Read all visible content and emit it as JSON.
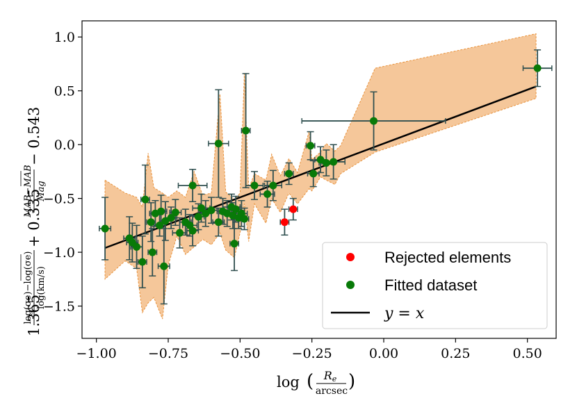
{
  "chart_data": {
    "type": "scatter",
    "xlabel": "log (Re / arcsec)",
    "xlabel_main": "log",
    "xlabel_num": "R",
    "xlabel_num_sub": "e",
    "xlabel_den": "arcsec",
    "ylabel": "1.365 (log(σe) − mean log(σe)) / log(km/s) + 0.335 (M_AB − mean M_AB) / Mag − 0.543",
    "ylabel_coef1": "1.365",
    "ylabel_frac1_num": "log(σe)−log(σe)",
    "ylabel_frac1_den": "log(km/s)",
    "ylabel_plus": "+ 0.335",
    "ylabel_frac2_num": "MAB−MAB",
    "ylabel_frac2_den": "Mag",
    "ylabel_const": "− 0.543",
    "xlim": [
      -1.05,
      0.6
    ],
    "ylim": [
      -1.8,
      1.15
    ],
    "x_ticks": [
      -1.0,
      -0.75,
      -0.5,
      -0.25,
      0.0,
      0.25,
      0.5
    ],
    "x_tick_labels": [
      "−1.00",
      "−0.75",
      "−0.50",
      "−0.25",
      "0.00",
      "0.25",
      "0.50"
    ],
    "y_ticks": [
      -1.5,
      -1.0,
      -0.5,
      0.0,
      0.5,
      1.0
    ],
    "y_tick_labels": [
      "−1.5",
      "−1.0",
      "−0.5",
      "0.0",
      "0.5",
      "1.0"
    ],
    "fit_line": {
      "x": [
        -0.97,
        0.53
      ],
      "y": [
        -0.96,
        0.54
      ]
    },
    "band": {
      "upper": [
        [
          -0.97,
          -0.33
        ],
        [
          -0.9,
          -0.45
        ],
        [
          -0.86,
          -0.49
        ],
        [
          -0.84,
          -0.58
        ],
        [
          -0.82,
          -0.08
        ],
        [
          -0.8,
          -0.4
        ],
        [
          -0.77,
          -0.45
        ],
        [
          -0.75,
          -0.49
        ],
        [
          -0.72,
          -0.43
        ],
        [
          -0.69,
          -0.49
        ],
        [
          -0.66,
          -0.25
        ],
        [
          -0.63,
          -0.47
        ],
        [
          -0.6,
          -0.45
        ],
        [
          -0.57,
          0.47
        ],
        [
          -0.55,
          -0.44
        ],
        [
          -0.52,
          -0.51
        ],
        [
          -0.5,
          -0.45
        ],
        [
          -0.485,
          0.66
        ],
        [
          -0.47,
          -0.41
        ],
        [
          -0.45,
          -0.27
        ],
        [
          -0.41,
          -0.33
        ],
        [
          -0.39,
          -0.09
        ],
        [
          -0.36,
          -0.29
        ],
        [
          -0.33,
          -0.13
        ],
        [
          -0.3,
          -0.26
        ],
        [
          -0.26,
          0.12
        ],
        [
          -0.25,
          -0.14
        ],
        [
          -0.22,
          -0.07
        ],
        [
          -0.2,
          0.01
        ],
        [
          -0.17,
          -0.06
        ],
        [
          -0.15,
          -0.01
        ],
        [
          -0.03,
          0.71
        ],
        [
          0.53,
          1.03
        ]
      ],
      "lower": [
        [
          0.53,
          0.43
        ],
        [
          -0.03,
          -0.07
        ],
        [
          -0.15,
          -0.27
        ],
        [
          -0.17,
          -0.37
        ],
        [
          -0.2,
          -0.33
        ],
        [
          -0.22,
          -0.3
        ],
        [
          -0.25,
          -0.43
        ],
        [
          -0.26,
          -0.41
        ],
        [
          -0.3,
          -0.55
        ],
        [
          -0.33,
          -0.45
        ],
        [
          -0.36,
          -0.63
        ],
        [
          -0.39,
          -0.5
        ],
        [
          -0.41,
          -0.73
        ],
        [
          -0.45,
          -0.55
        ],
        [
          -0.47,
          -0.9
        ],
        [
          -0.485,
          -0.55
        ],
        [
          -0.5,
          -0.82
        ],
        [
          -0.52,
          -1.05
        ],
        [
          -0.55,
          -0.98
        ],
        [
          -0.57,
          -0.82
        ],
        [
          -0.6,
          -0.93
        ],
        [
          -0.63,
          -0.88
        ],
        [
          -0.66,
          -0.95
        ],
        [
          -0.69,
          -1.02
        ],
        [
          -0.72,
          -0.85
        ],
        [
          -0.75,
          -1.12
        ],
        [
          -0.77,
          -1.62
        ],
        [
          -0.8,
          -1.42
        ],
        [
          -0.82,
          -1.47
        ],
        [
          -0.84,
          -1.56
        ],
        [
          -0.86,
          -1.15
        ],
        [
          -0.9,
          -1.08
        ],
        [
          -0.97,
          -1.25
        ]
      ]
    },
    "fitted": [
      {
        "x": -0.97,
        "y": -0.78,
        "xerr": 0.02,
        "yerr": 0.29
      },
      {
        "x": -0.885,
        "y": -0.87,
        "xerr": 0.02,
        "yerr": 0.2
      },
      {
        "x": -0.875,
        "y": -0.91,
        "xerr": 0.02,
        "yerr": 0.18
      },
      {
        "x": -0.86,
        "y": -0.95,
        "xerr": 0.02,
        "yerr": 0.2
      },
      {
        "x": -0.84,
        "y": -1.09,
        "xerr": 0.015,
        "yerr": 0.24
      },
      {
        "x": -0.83,
        "y": -0.51,
        "xerr": 0.015,
        "yerr": 0.32
      },
      {
        "x": -0.81,
        "y": -0.72,
        "xerr": 0.015,
        "yerr": 0.18
      },
      {
        "x": -0.805,
        "y": -1.0,
        "xerr": 0.015,
        "yerr": 0.22
      },
      {
        "x": -0.795,
        "y": -0.64,
        "xerr": 0.02,
        "yerr": 0.12
      },
      {
        "x": -0.78,
        "y": -0.75,
        "xerr": 0.02,
        "yerr": 0.1
      },
      {
        "x": -0.775,
        "y": -0.62,
        "xerr": 0.02,
        "yerr": 0.15
      },
      {
        "x": -0.765,
        "y": -1.13,
        "xerr": 0.02,
        "yerr": 0.35
      },
      {
        "x": -0.76,
        "y": -0.71,
        "xerr": 0.02,
        "yerr": 0.18
      },
      {
        "x": -0.74,
        "y": -0.68,
        "xerr": 0.02,
        "yerr": 0.1
      },
      {
        "x": -0.725,
        "y": -0.63,
        "xerr": 0.02,
        "yerr": 0.12
      },
      {
        "x": -0.71,
        "y": -0.82,
        "xerr": 0.025,
        "yerr": 0.14
      },
      {
        "x": -0.69,
        "y": -0.72,
        "xerr": 0.02,
        "yerr": 0.12
      },
      {
        "x": -0.675,
        "y": -0.75,
        "xerr": 0.025,
        "yerr": 0.1
      },
      {
        "x": -0.665,
        "y": -0.38,
        "xerr": 0.05,
        "yerr": 0.15
      },
      {
        "x": -0.665,
        "y": -0.8,
        "xerr": 0.02,
        "yerr": 0.14
      },
      {
        "x": -0.645,
        "y": -0.67,
        "xerr": 0.02,
        "yerr": 0.12
      },
      {
        "x": -0.635,
        "y": -0.59,
        "xerr": 0.03,
        "yerr": 0.13
      },
      {
        "x": -0.62,
        "y": -0.64,
        "xerr": 0.02,
        "yerr": 0.12
      },
      {
        "x": -0.6,
        "y": -0.61,
        "xerr": 0.02,
        "yerr": 0.12
      },
      {
        "x": -0.575,
        "y": 0.01,
        "xerr": 0.035,
        "yerr": 0.5
      },
      {
        "x": -0.575,
        "y": -0.72,
        "xerr": 0.02,
        "yerr": 0.13
      },
      {
        "x": -0.56,
        "y": -0.62,
        "xerr": 0.02,
        "yerr": 0.12
      },
      {
        "x": -0.545,
        "y": -0.64,
        "xerr": 0.03,
        "yerr": 0.12
      },
      {
        "x": -0.53,
        "y": -0.58,
        "xerr": 0.03,
        "yerr": 0.12
      },
      {
        "x": -0.525,
        "y": -0.66,
        "xerr": 0.02,
        "yerr": 0.12
      },
      {
        "x": -0.52,
        "y": -0.92,
        "xerr": 0.015,
        "yerr": 0.25
      },
      {
        "x": -0.515,
        "y": -0.6,
        "xerr": 0.02,
        "yerr": 0.12
      },
      {
        "x": -0.505,
        "y": -0.68,
        "xerr": 0.015,
        "yerr": 0.1
      },
      {
        "x": -0.495,
        "y": -0.64,
        "xerr": 0.02,
        "yerr": 0.12
      },
      {
        "x": -0.485,
        "y": -0.69,
        "xerr": 0.015,
        "yerr": 0.1
      },
      {
        "x": -0.48,
        "y": 0.13,
        "xerr": 0.015,
        "yerr": 0.53
      },
      {
        "x": -0.45,
        "y": -0.38,
        "xerr": 0.03,
        "yerr": 0.13
      },
      {
        "x": -0.405,
        "y": -0.46,
        "xerr": 0.025,
        "yerr": 0.12
      },
      {
        "x": -0.385,
        "y": -0.38,
        "xerr": 0.03,
        "yerr": 0.14
      },
      {
        "x": -0.33,
        "y": -0.27,
        "xerr": 0.015,
        "yerr": 0.1
      },
      {
        "x": -0.255,
        "y": -0.01,
        "xerr": 0.015,
        "yerr": 0.13
      },
      {
        "x": -0.245,
        "y": -0.27,
        "xerr": 0.02,
        "yerr": 0.12
      },
      {
        "x": -0.22,
        "y": -0.14,
        "xerr": 0.02,
        "yerr": 0.12
      },
      {
        "x": -0.2,
        "y": -0.17,
        "xerr": 0.025,
        "yerr": 0.12
      },
      {
        "x": -0.175,
        "y": -0.16,
        "xerr": 0.04,
        "yerr": 0.16
      },
      {
        "x": -0.035,
        "y": 0.22,
        "xerr": 0.25,
        "yerr": 0.27
      },
      {
        "x": 0.535,
        "y": 0.71,
        "xerr": 0.05,
        "yerr": 0.17
      }
    ],
    "rejected": [
      {
        "x": -0.345,
        "y": -0.72,
        "xerr": 0.015,
        "yerr": 0.12
      },
      {
        "x": -0.315,
        "y": -0.6,
        "xerr": 0.015,
        "yerr": 0.1
      }
    ],
    "legend": {
      "position": "bottom-right",
      "rejected_label": "Rejected elements",
      "fitted_label": "Fitted dataset",
      "line_label": "y = x"
    },
    "colors": {
      "fitted": "#087a08",
      "rejected": "#ff0000",
      "fit_line": "#000000",
      "band_fill": "#f5c79a",
      "band_edge": "#e8913a",
      "errorbar": "#2f4f4f"
    }
  }
}
